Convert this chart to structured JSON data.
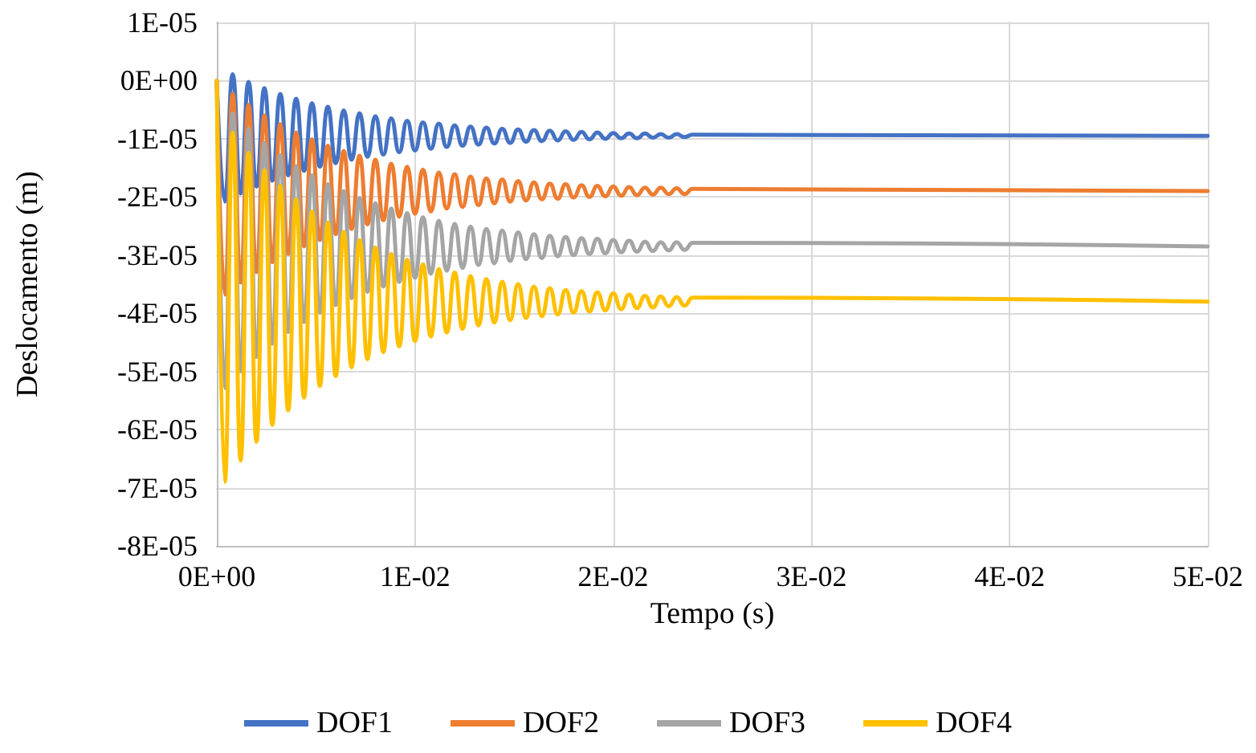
{
  "chart_data": {
    "type": "line",
    "xlabel": "Tempo (s)",
    "ylabel": "Deslocamento (m)",
    "x": [
      0,
      0.0004,
      0.0008,
      0.0012,
      0.0016,
      0.002,
      0.0024,
      0.0028,
      0.0032,
      0.0036,
      0.004,
      0.0044,
      0.0048,
      0.0052,
      0.0056,
      0.006,
      0.0064,
      0.0068,
      0.0072,
      0.0076,
      0.008,
      0.0084,
      0.0088,
      0.0092,
      0.0096,
      0.01,
      0.0104,
      0.0108,
      0.0112,
      0.0116,
      0.012,
      0.0124,
      0.0128,
      0.0132,
      0.0136,
      0.014,
      0.0144,
      0.0148,
      0.0152,
      0.0156,
      0.016,
      0.0164,
      0.0168,
      0.0172,
      0.0176,
      0.018,
      0.0184,
      0.0188,
      0.0192,
      0.0196,
      0.02,
      0.0204,
      0.0208,
      0.0212,
      0.0216,
      0.022,
      0.0224,
      0.0228,
      0.0232,
      0.0236,
      0.024,
      0.05
    ],
    "series": [
      {
        "name": "DOF1",
        "color": "#4472c4",
        "values": [
          0,
          -2.08e-05,
          1.1e-06,
          -1.94e-05,
          -2e-07,
          -1.82e-05,
          -1.3e-06,
          -1.72e-05,
          -2.3e-06,
          -1.63e-05,
          -3.1e-06,
          -1.55e-05,
          -3.9e-06,
          -1.48e-05,
          -4.5e-06,
          -1.42e-05,
          -5.1e-06,
          -1.36e-05,
          -5.6e-06,
          -1.31e-05,
          -6.1e-06,
          -1.27e-05,
          -6.5e-06,
          -1.23e-05,
          -6.9e-06,
          -1.2e-05,
          -7.2e-06,
          -1.17e-05,
          -7.4e-06,
          -1.14e-05,
          -7.7e-06,
          -1.12e-05,
          -7.9e-06,
          -1.1e-05,
          -8.1e-06,
          -1.08e-05,
          -8.3e-06,
          -1.07e-05,
          -8.4e-06,
          -1.05e-05,
          -8.5e-06,
          -1.04e-05,
          -8.6e-06,
          -1.03e-05,
          -8.7e-06,
          -1.02e-05,
          -8.8e-06,
          -1.01e-05,
          -8.9e-06,
          -1e-05,
          -9e-06,
          -9.9e-06,
          -9.1e-06,
          -9.9e-06,
          -9.1e-06,
          -9.8e-06,
          -9.2e-06,
          -9.8e-06,
          -9.2e-06,
          -9.7e-06,
          -9.3e-06,
          -9.5e-06
        ]
      },
      {
        "name": "DOF2",
        "color": "#ed7d31",
        "values": [
          0,
          -3.68e-05,
          -2.3e-06,
          -3.47e-05,
          -4.2e-06,
          -3.29e-05,
          -6e-06,
          -3.12e-05,
          -7.5e-06,
          -2.98e-05,
          -8.9e-06,
          -2.85e-05,
          -1.01e-05,
          -2.74e-05,
          -1.12e-05,
          -2.64e-05,
          -1.21e-05,
          -2.55e-05,
          -1.29e-05,
          -2.47e-05,
          -1.36e-05,
          -2.4e-05,
          -1.43e-05,
          -2.34e-05,
          -1.48e-05,
          -2.29e-05,
          -1.53e-05,
          -2.25e-05,
          -1.58e-05,
          -2.2e-05,
          -1.61e-05,
          -2.17e-05,
          -1.65e-05,
          -2.14e-05,
          -1.68e-05,
          -2.11e-05,
          -1.7e-05,
          -2.08e-05,
          -1.73e-05,
          -2.06e-05,
          -1.75e-05,
          -2.04e-05,
          -1.77e-05,
          -2.03e-05,
          -1.78e-05,
          -2.01e-05,
          -1.8e-05,
          -2e-05,
          -1.81e-05,
          -1.99e-05,
          -1.82e-05,
          -1.98e-05,
          -1.83e-05,
          -1.97e-05,
          -1.84e-05,
          -1.96e-05,
          -1.84e-05,
          -1.95e-05,
          -1.85e-05,
          -1.95e-05,
          -1.86e-05,
          -1.9e-05
        ]
      },
      {
        "name": "DOF3",
        "color": "#a5a5a5",
        "values": [
          0,
          -5.29e-05,
          -5.6e-06,
          -5e-05,
          -8.3e-06,
          -4.75e-05,
          -1.07e-05,
          -4.52e-05,
          -1.28e-05,
          -4.32e-05,
          -1.47e-05,
          -4.15e-05,
          -1.63e-05,
          -3.99e-05,
          -1.78e-05,
          -3.86e-05,
          -1.9e-05,
          -3.74e-05,
          -2.02e-05,
          -3.63e-05,
          -2.11e-05,
          -3.54e-05,
          -2.2e-05,
          -3.46e-05,
          -2.28e-05,
          -3.39e-05,
          -2.35e-05,
          -3.32e-05,
          -2.41e-05,
          -3.27e-05,
          -2.46e-05,
          -3.22e-05,
          -2.51e-05,
          -3.17e-05,
          -2.55e-05,
          -3.14e-05,
          -2.58e-05,
          -3.1e-05,
          -2.61e-05,
          -3.07e-05,
          -2.64e-05,
          -3.05e-05,
          -2.67e-05,
          -3.02e-05,
          -2.69e-05,
          -3e-05,
          -2.71e-05,
          -2.98e-05,
          -2.72e-05,
          -2.97e-05,
          -2.74e-05,
          -2.95e-05,
          -2.75e-05,
          -2.94e-05,
          -2.77e-05,
          -2.93e-05,
          -2.78e-05,
          -2.92e-05,
          -2.78e-05,
          -2.91e-05,
          -2.79e-05,
          -2.85e-05
        ]
      },
      {
        "name": "DOF4",
        "color": "#ffc000",
        "values": [
          0,
          -6.9e-05,
          -8.9e-06,
          -6.53e-05,
          -1.24e-05,
          -6.21e-05,
          -1.54e-05,
          -5.92e-05,
          -1.81e-05,
          -5.67e-05,
          -2.04e-05,
          -5.45e-05,
          -2.25e-05,
          -5.25e-05,
          -2.44e-05,
          -5.08e-05,
          -2.6e-05,
          -4.93e-05,
          -2.74e-05,
          -4.79e-05,
          -2.87e-05,
          -4.67e-05,
          -2.98e-05,
          -4.57e-05,
          -3.08e-05,
          -4.48e-05,
          -3.16e-05,
          -4.4e-05,
          -3.24e-05,
          -4.33e-05,
          -3.3e-05,
          -4.27e-05,
          -3.36e-05,
          -4.21e-05,
          -3.41e-05,
          -4.16e-05,
          -3.46e-05,
          -4.12e-05,
          -3.5e-05,
          -4.08e-05,
          -3.54e-05,
          -4.05e-05,
          -3.57e-05,
          -4.02e-05,
          -3.6e-05,
          -3.99e-05,
          -3.62e-05,
          -3.97e-05,
          -3.64e-05,
          -3.95e-05,
          -3.66e-05,
          -3.93e-05,
          -3.68e-05,
          -3.91e-05,
          -3.7e-05,
          -3.9e-05,
          -3.71e-05,
          -3.88e-05,
          -3.72e-05,
          -3.87e-05,
          -3.73e-05,
          -3.8e-05
        ]
      }
    ],
    "xlim": [
      0,
      0.05
    ],
    "xticks": [
      {
        "value": 0,
        "label": "0E+00"
      },
      {
        "value": 0.01,
        "label": "1E-02"
      },
      {
        "value": 0.02,
        "label": "2E-02"
      },
      {
        "value": 0.03,
        "label": "3E-02"
      },
      {
        "value": 0.04,
        "label": "4E-02"
      },
      {
        "value": 0.05,
        "label": "5E-02"
      }
    ],
    "ylim": [
      -8e-05,
      1e-05
    ],
    "yticks": [
      {
        "value": -8e-05,
        "label": "-8E-05"
      },
      {
        "value": -7e-05,
        "label": "-7E-05"
      },
      {
        "value": -6e-05,
        "label": "-6E-05"
      },
      {
        "value": -5e-05,
        "label": "-5E-05"
      },
      {
        "value": -4e-05,
        "label": "-4E-05"
      },
      {
        "value": -3e-05,
        "label": "-3E-05"
      },
      {
        "value": -2e-05,
        "label": "-2E-05"
      },
      {
        "value": -1e-05,
        "label": "-1E-05"
      },
      {
        "value": 0,
        "label": "0E+00"
      },
      {
        "value": 1e-05,
        "label": "1E-05"
      }
    ],
    "grid": true,
    "legend": "bottom",
    "marker": "none",
    "line_style": "solid"
  }
}
